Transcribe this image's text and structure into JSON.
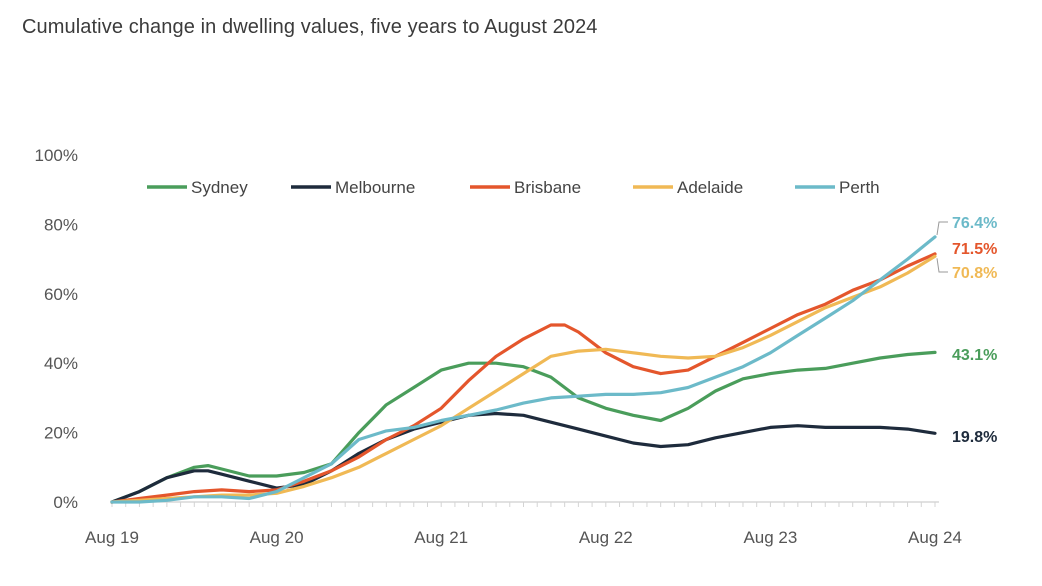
{
  "chart_data": {
    "type": "line",
    "title": "Cumulative change in dwelling values, five years to August 2024",
    "xlabel": "",
    "ylabel": "",
    "x_range": [
      0,
      60
    ],
    "x_tick_labels": [
      {
        "pos": 0,
        "label": "Aug 19"
      },
      {
        "pos": 12,
        "label": "Aug 20"
      },
      {
        "pos": 24,
        "label": "Aug 21"
      },
      {
        "pos": 36,
        "label": "Aug 22"
      },
      {
        "pos": 48,
        "label": "Aug 23"
      },
      {
        "pos": 60,
        "label": "Aug 24"
      }
    ],
    "ylim": [
      0,
      100
    ],
    "y_ticks": [
      0,
      20,
      40,
      60,
      80,
      100
    ],
    "y_tick_labels": [
      "0%",
      "20%",
      "40%",
      "60%",
      "80%",
      "100%"
    ],
    "grid": false,
    "legend_position": "top",
    "series": [
      {
        "name": "Sydney",
        "color": "#4a9d5b",
        "end_label": "43.1%",
        "points": [
          [
            0,
            0
          ],
          [
            2,
            3
          ],
          [
            4,
            7
          ],
          [
            6,
            10
          ],
          [
            7,
            10.5
          ],
          [
            8,
            9.5
          ],
          [
            10,
            7.5
          ],
          [
            12,
            7.5
          ],
          [
            14,
            8.5
          ],
          [
            16,
            11
          ],
          [
            18,
            20
          ],
          [
            20,
            28
          ],
          [
            22,
            33
          ],
          [
            24,
            38
          ],
          [
            26,
            40
          ],
          [
            28,
            40
          ],
          [
            30,
            39
          ],
          [
            32,
            36
          ],
          [
            34,
            30
          ],
          [
            36,
            27
          ],
          [
            38,
            25
          ],
          [
            40,
            23.5
          ],
          [
            42,
            27
          ],
          [
            44,
            32
          ],
          [
            46,
            35.5
          ],
          [
            48,
            37
          ],
          [
            50,
            38
          ],
          [
            52,
            38.5
          ],
          [
            54,
            40
          ],
          [
            56,
            41.5
          ],
          [
            58,
            42.5
          ],
          [
            60,
            43.1
          ]
        ]
      },
      {
        "name": "Melbourne",
        "color": "#1e2b3c",
        "end_label": "19.8%",
        "points": [
          [
            0,
            0
          ],
          [
            2,
            3
          ],
          [
            3,
            5
          ],
          [
            4,
            7
          ],
          [
            6,
            9
          ],
          [
            7,
            9
          ],
          [
            8,
            8
          ],
          [
            10,
            6
          ],
          [
            12,
            4
          ],
          [
            14,
            5
          ],
          [
            16,
            9
          ],
          [
            18,
            14
          ],
          [
            20,
            18
          ],
          [
            22,
            21
          ],
          [
            24,
            23
          ],
          [
            26,
            25
          ],
          [
            28,
            25.5
          ],
          [
            30,
            25
          ],
          [
            32,
            23
          ],
          [
            34,
            21
          ],
          [
            36,
            19
          ],
          [
            38,
            17
          ],
          [
            40,
            16
          ],
          [
            42,
            16.5
          ],
          [
            44,
            18.5
          ],
          [
            46,
            20
          ],
          [
            48,
            21.5
          ],
          [
            50,
            22
          ],
          [
            52,
            21.5
          ],
          [
            54,
            21.5
          ],
          [
            56,
            21.5
          ],
          [
            58,
            21
          ],
          [
            60,
            19.8
          ]
        ]
      },
      {
        "name": "Brisbane",
        "color": "#e4562c",
        "end_label": "71.5%",
        "points": [
          [
            0,
            0
          ],
          [
            2,
            1
          ],
          [
            4,
            2
          ],
          [
            6,
            3
          ],
          [
            8,
            3.5
          ],
          [
            10,
            3
          ],
          [
            12,
            3.5
          ],
          [
            14,
            6
          ],
          [
            16,
            9
          ],
          [
            18,
            13
          ],
          [
            20,
            18
          ],
          [
            22,
            22
          ],
          [
            24,
            27
          ],
          [
            26,
            35
          ],
          [
            28,
            42
          ],
          [
            30,
            47
          ],
          [
            32,
            51
          ],
          [
            33,
            51
          ],
          [
            34,
            49
          ],
          [
            36,
            43
          ],
          [
            38,
            39
          ],
          [
            40,
            37
          ],
          [
            42,
            38
          ],
          [
            44,
            42
          ],
          [
            46,
            46
          ],
          [
            48,
            50
          ],
          [
            50,
            54
          ],
          [
            52,
            57
          ],
          [
            54,
            61
          ],
          [
            56,
            64
          ],
          [
            58,
            68
          ],
          [
            60,
            71.5
          ]
        ]
      },
      {
        "name": "Adelaide",
        "color": "#f0b955",
        "end_label": "70.8%",
        "points": [
          [
            0,
            0
          ],
          [
            2,
            0.5
          ],
          [
            4,
            1
          ],
          [
            6,
            1.5
          ],
          [
            8,
            2
          ],
          [
            10,
            2
          ],
          [
            12,
            2.5
          ],
          [
            14,
            4.5
          ],
          [
            16,
            7
          ],
          [
            18,
            10
          ],
          [
            20,
            14
          ],
          [
            22,
            18
          ],
          [
            24,
            22
          ],
          [
            26,
            27
          ],
          [
            28,
            32
          ],
          [
            30,
            37
          ],
          [
            32,
            42
          ],
          [
            34,
            43.5
          ],
          [
            36,
            44
          ],
          [
            38,
            43
          ],
          [
            40,
            42
          ],
          [
            42,
            41.5
          ],
          [
            44,
            42
          ],
          [
            46,
            44.5
          ],
          [
            48,
            48
          ],
          [
            50,
            52
          ],
          [
            52,
            56
          ],
          [
            54,
            59
          ],
          [
            56,
            62
          ],
          [
            58,
            66
          ],
          [
            60,
            70.8
          ]
        ]
      },
      {
        "name": "Perth",
        "color": "#6cbac9",
        "end_label": "76.4%",
        "points": [
          [
            0,
            0
          ],
          [
            2,
            0
          ],
          [
            4,
            0.5
          ],
          [
            6,
            1.5
          ],
          [
            8,
            1.5
          ],
          [
            10,
            1
          ],
          [
            12,
            3
          ],
          [
            14,
            7
          ],
          [
            16,
            11
          ],
          [
            18,
            18
          ],
          [
            20,
            20.5
          ],
          [
            22,
            21.5
          ],
          [
            24,
            23.5
          ],
          [
            26,
            25
          ],
          [
            28,
            26.5
          ],
          [
            30,
            28.5
          ],
          [
            32,
            30
          ],
          [
            34,
            30.5
          ],
          [
            36,
            31
          ],
          [
            38,
            31
          ],
          [
            40,
            31.5
          ],
          [
            42,
            33
          ],
          [
            44,
            36
          ],
          [
            46,
            39
          ],
          [
            48,
            43
          ],
          [
            50,
            48
          ],
          [
            52,
            53
          ],
          [
            54,
            58
          ],
          [
            56,
            64
          ],
          [
            58,
            70
          ],
          [
            60,
            76.4
          ]
        ]
      }
    ]
  }
}
